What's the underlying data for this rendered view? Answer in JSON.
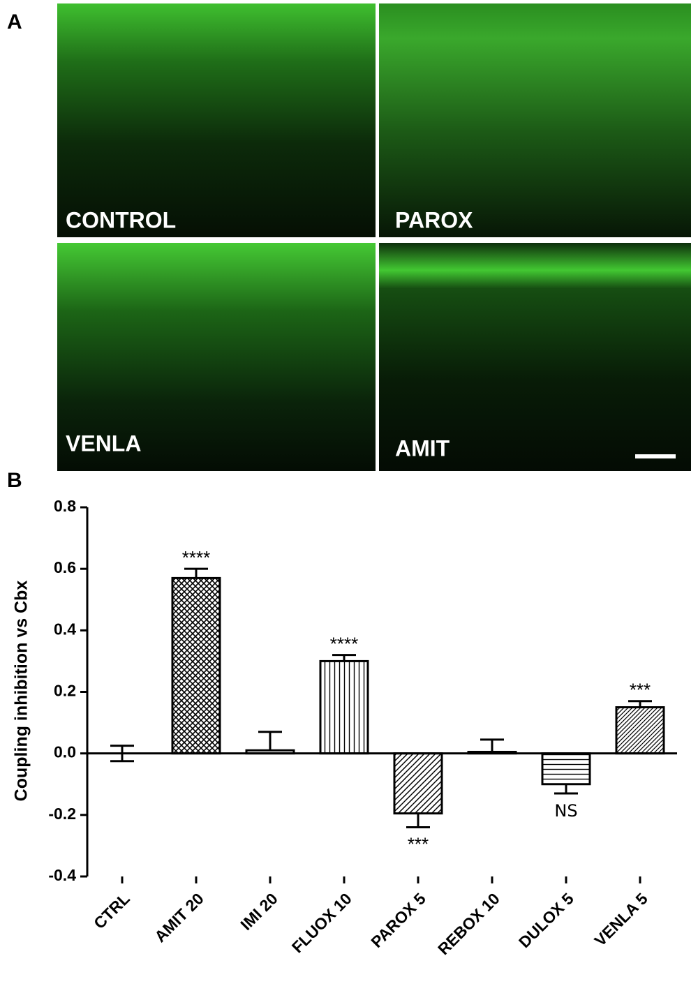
{
  "panel_a": {
    "label": "A",
    "images": [
      "CONTROL",
      "PAROX",
      "VENLA",
      "AMIT"
    ]
  },
  "panel_b": {
    "label": "B"
  },
  "chart_data": {
    "type": "bar",
    "ylabel": "Coupling inhibition vs Cbx",
    "categories": [
      "CTRL",
      "AMIT 20",
      "IMI 20",
      "FLUOX 10",
      "PAROX 5",
      "REBOX 10",
      "DULOX 5",
      "VENLA 5"
    ],
    "values": [
      0,
      0.57,
      0.01,
      0.3,
      -0.195,
      0.005,
      -0.1,
      0.15
    ],
    "errors": [
      0.025,
      0.03,
      0.06,
      0.02,
      0.045,
      0.04,
      0.03,
      0.02
    ],
    "significance": [
      null,
      "****",
      null,
      "****",
      "***",
      null,
      "NS",
      "***"
    ],
    "color": "#000000",
    "ylim": [
      -0.4,
      0.8
    ],
    "yticks": [
      -0.4,
      -0.2,
      {
        "value": 0,
        "label": "0.0"
      },
      0.2,
      0.4,
      0.6,
      0.8
    ]
  }
}
